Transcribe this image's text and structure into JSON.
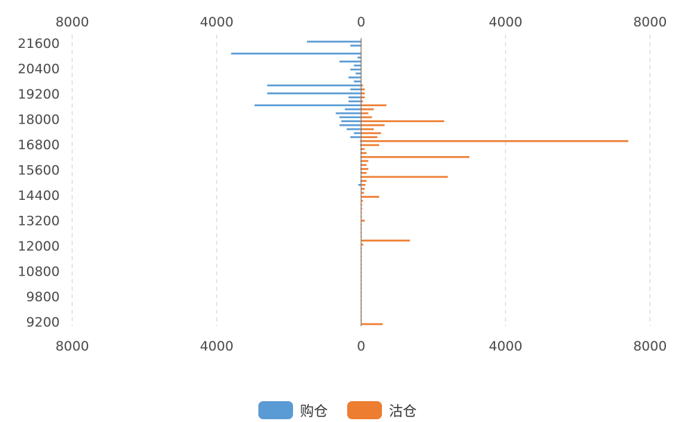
{
  "chart_data": {
    "type": "bar",
    "orientation": "horizontal-diverging",
    "x_tick_labels": [
      "8000",
      "4000",
      "0",
      "4000",
      "8000"
    ],
    "y_tick_labels": [
      "21600",
      "20400",
      "19200",
      "18000",
      "16800",
      "15600",
      "14400",
      "13200",
      "12000",
      "10800",
      "9800",
      "9200"
    ],
    "xlim": [
      -8000,
      8000
    ],
    "grid": "vertical dashed",
    "legend_position": "bottom",
    "series": [
      {
        "name": "购仓",
        "color": "#5b9bd5",
        "direction": "left",
        "values": [
          1500,
          300,
          0,
          3600,
          100,
          600,
          200,
          300,
          150,
          350,
          200,
          2600,
          300,
          2600,
          350,
          350,
          2950,
          450,
          700,
          600,
          550,
          600,
          400,
          200,
          300,
          30,
          30,
          20,
          20,
          20,
          20,
          20,
          20,
          20,
          20,
          20,
          80,
          0,
          0,
          0,
          0,
          0,
          0,
          0,
          0,
          0,
          0,
          0,
          0,
          0,
          0,
          0,
          0,
          0,
          0,
          0,
          0,
          0,
          0,
          0,
          0,
          0,
          0,
          0,
          0,
          0,
          0,
          0,
          0,
          0,
          0,
          0
        ]
      },
      {
        "name": "沽仓",
        "color": "#ed7d31",
        "direction": "right",
        "values": [
          0,
          0,
          0,
          0,
          0,
          0,
          0,
          0,
          0,
          0,
          0,
          50,
          100,
          100,
          100,
          50,
          700,
          350,
          200,
          300,
          2300,
          650,
          350,
          550,
          450,
          7400,
          500,
          100,
          150,
          3000,
          200,
          150,
          200,
          150,
          2400,
          150,
          120,
          100,
          80,
          500,
          50,
          30,
          30,
          20,
          20,
          100,
          20,
          20,
          20,
          20,
          1350,
          60,
          20,
          20,
          20,
          20,
          20,
          20,
          20,
          20,
          20,
          20,
          20,
          20,
          20,
          20,
          20,
          20,
          20,
          20,
          20,
          600
        ]
      }
    ]
  }
}
